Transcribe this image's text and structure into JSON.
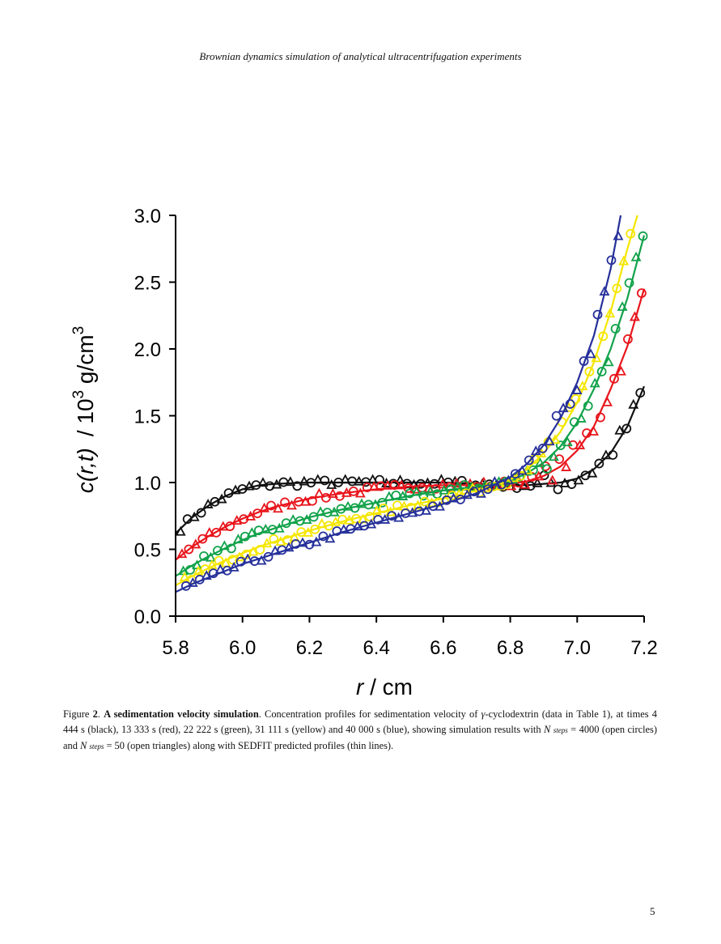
{
  "header": {
    "running_title": "Brownian dynamics simulation of analytical ultracentrifugation experiments"
  },
  "chart_data": {
    "type": "line",
    "xlabel_italic": "r",
    "xlabel_rest": " / cm",
    "ylabel_italic": "c(r,t)",
    "ylabel_rest": "/ 10",
    "ylabel_sup": "3",
    "ylabel_units": " g/cm",
    "ylabel_units_sup": "3",
    "xlim": [
      5.8,
      7.2
    ],
    "ylim": [
      0.0,
      3.0
    ],
    "x_ticks": [
      "5.8",
      "6.0",
      "6.2",
      "6.4",
      "6.6",
      "6.8",
      "7.0",
      "7.2"
    ],
    "y_ticks": [
      "0.0",
      "0.5",
      "1.0",
      "1.5",
      "2.0",
      "2.5",
      "3.0"
    ],
    "x_tick_values": [
      5.8,
      6.0,
      6.2,
      6.4,
      6.6,
      6.8,
      7.0,
      7.2
    ],
    "y_tick_values": [
      0.0,
      0.5,
      1.0,
      1.5,
      2.0,
      2.5,
      3.0
    ],
    "markers": {
      "circles": "N steps = 4000 (open circles)",
      "triangles": "N steps = 50 (open triangles)"
    },
    "series": [
      {
        "time": "4 444 s",
        "color": "#111111",
        "x": [
          5.8,
          5.85,
          5.9,
          5.95,
          6.0,
          6.05,
          6.1,
          6.2,
          6.3,
          6.4,
          6.5,
          6.6,
          6.7,
          6.8,
          6.85,
          6.9,
          6.95,
          7.0,
          7.05,
          7.1,
          7.15,
          7.2
        ],
        "y": [
          0.62,
          0.74,
          0.83,
          0.9,
          0.95,
          0.98,
          0.99,
          1.0,
          1.0,
          1.0,
          1.0,
          1.0,
          0.99,
          0.98,
          0.98,
          0.99,
          1.0,
          1.03,
          1.1,
          1.22,
          1.42,
          1.72
        ]
      },
      {
        "time": "13 333 s",
        "color": "#e8141b",
        "x": [
          5.8,
          5.85,
          5.9,
          5.95,
          6.0,
          6.05,
          6.1,
          6.2,
          6.3,
          6.4,
          6.5,
          6.6,
          6.7,
          6.8,
          6.85,
          6.9,
          6.95,
          7.0,
          7.05,
          7.1,
          7.15,
          7.2
        ],
        "y": [
          0.42,
          0.52,
          0.6,
          0.67,
          0.73,
          0.78,
          0.82,
          0.88,
          0.92,
          0.95,
          0.97,
          0.98,
          0.98,
          0.99,
          1.01,
          1.05,
          1.12,
          1.24,
          1.42,
          1.7,
          2.02,
          2.45
        ]
      },
      {
        "time": "22 222 s",
        "color": "#11a24a",
        "x": [
          5.8,
          5.85,
          5.9,
          5.95,
          6.0,
          6.05,
          6.1,
          6.2,
          6.3,
          6.4,
          6.5,
          6.6,
          6.7,
          6.8,
          6.85,
          6.9,
          6.95,
          7.0,
          7.05,
          7.1,
          7.15,
          7.2
        ],
        "y": [
          0.3,
          0.38,
          0.45,
          0.51,
          0.57,
          0.62,
          0.66,
          0.74,
          0.8,
          0.85,
          0.9,
          0.94,
          0.97,
          1.01,
          1.07,
          1.15,
          1.27,
          1.45,
          1.7,
          2.0,
          2.38,
          2.85
        ]
      },
      {
        "time": "31 111 s",
        "color": "#f5e600",
        "x": [
          5.8,
          5.85,
          5.9,
          5.95,
          6.0,
          6.05,
          6.1,
          6.2,
          6.3,
          6.4,
          6.5,
          6.6,
          6.7,
          6.8,
          6.85,
          6.9,
          6.95,
          7.0,
          7.05,
          7.1,
          7.15,
          7.18
        ],
        "y": [
          0.23,
          0.3,
          0.36,
          0.42,
          0.47,
          0.52,
          0.56,
          0.64,
          0.71,
          0.77,
          0.83,
          0.88,
          0.94,
          1.02,
          1.1,
          1.22,
          1.38,
          1.6,
          1.9,
          2.28,
          2.75,
          3.0
        ]
      },
      {
        "time": "40 000 s",
        "color": "#26309a",
        "x": [
          5.8,
          5.85,
          5.9,
          5.95,
          6.0,
          6.05,
          6.1,
          6.2,
          6.3,
          6.4,
          6.5,
          6.6,
          6.7,
          6.8,
          6.85,
          6.9,
          6.95,
          7.0,
          7.05,
          7.1,
          7.13
        ],
        "y": [
          0.18,
          0.24,
          0.29,
          0.34,
          0.39,
          0.43,
          0.47,
          0.55,
          0.63,
          0.7,
          0.77,
          0.84,
          0.92,
          1.04,
          1.14,
          1.28,
          1.48,
          1.75,
          2.1,
          2.6,
          3.0
        ]
      }
    ]
  },
  "caption": {
    "fig_label": "Figure ",
    "fig_number": "2",
    "fig_sep": ". ",
    "bold_title": "A sedimentation velocity simulation",
    "t1": ". Concentration profiles for sedimentation velocity of ",
    "gamma": "γ",
    "t2": "-cyclodextrin (data in Table 1), at times 4 444 s (black), 13 333 s (red), 22 222 s (green), 31 111 s (yellow) and 40 000 s (blue), showing simulation results with ",
    "n1": "N",
    "sub1": "steps",
    "t3": " = 4000 (open circles) and ",
    "n2": "N",
    "sub2": "steps",
    "t4": " = 50 (open triangles) along with SEDFIT predicted profiles (thin lines)."
  },
  "footer": {
    "page_number": "5"
  }
}
